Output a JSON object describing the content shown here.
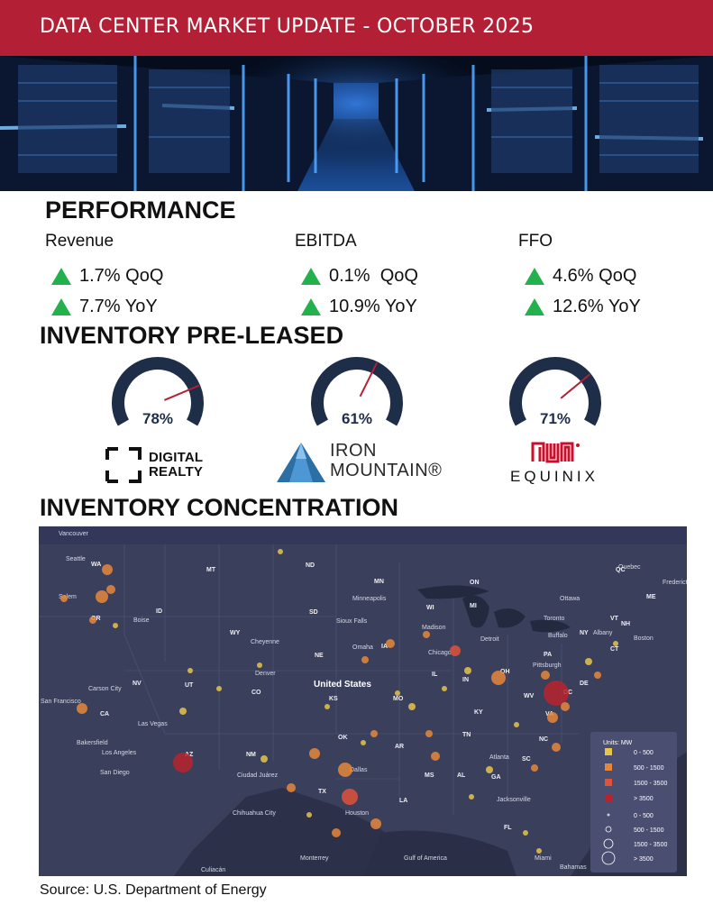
{
  "header": {
    "title": "DATA CENTER MARKET UPDATE - OCTOBER 2025",
    "bg_color": "#b32035"
  },
  "hero": {
    "description_icon": "server-hallway-image"
  },
  "performance": {
    "title": "PERFORMANCE",
    "metrics": [
      {
        "name": "Revenue",
        "qoq": "1.7% QoQ",
        "yoy": "7.7% YoY"
      },
      {
        "name": "EBITDA",
        "qoq": "0.1%  QoQ",
        "yoy": "10.9% YoY"
      },
      {
        "name": "FFO",
        "qoq": "4.6% QoQ",
        "yoy": "12.6% YoY"
      }
    ],
    "up_color": "#22b14c"
  },
  "inventory_preleased": {
    "title": "INVENTORY PRE-LEASED",
    "gauges": [
      {
        "company": "Digital Realty",
        "percent": 78,
        "label": "78%"
      },
      {
        "company": "Iron Mountain",
        "percent": 61,
        "label": "61%"
      },
      {
        "company": "Equinix",
        "percent": 71,
        "label": "71%"
      }
    ],
    "logos": {
      "digital_realty": {
        "line1": "DIGITAL",
        "line2": "REALTY"
      },
      "iron_mountain": {
        "line1": "IRON",
        "line2": "MOUNTAIN®"
      },
      "equinix": {
        "text": "EQUINIX"
      }
    },
    "gauge_color": "#1e2d48",
    "needle_color": "#b32035"
  },
  "concentration": {
    "title": "INVENTORY CONCENTRATION",
    "map_labels": {
      "places": [
        "Vancouver",
        "Seattle",
        "Salem",
        "Boise",
        "Carson City",
        "San Francisco",
        "Las Vegas",
        "Bakersfield",
        "Los Angeles",
        "San Diego",
        "Cheyenne",
        "Denver",
        "Sioux Falls",
        "Omaha",
        "Minneapolis",
        "Madison",
        "Chicago",
        "Detroit",
        "Toronto",
        "Ottawa",
        "Quebec",
        "Fredericton",
        "Albany",
        "Boston",
        "Buffalo",
        "Pittsburgh",
        "United States",
        "Dallas",
        "Houston",
        "Atlanta",
        "Jacksonville",
        "Miami",
        "Bahamas",
        "Monterrey",
        "Culiacán",
        "Chihuahua City",
        "Ciudad Juárez",
        "Gulf of America"
      ],
      "states": [
        "WA",
        "OR",
        "CA",
        "NV",
        "ID",
        "MT",
        "WY",
        "UT",
        "AZ",
        "NM",
        "CO",
        "ND",
        "SD",
        "NE",
        "KS",
        "OK",
        "TX",
        "MN",
        "IA",
        "MO",
        "AR",
        "LA",
        "WI",
        "IL",
        "MI",
        "IN",
        "KY",
        "TN",
        "MS",
        "AL",
        "GA",
        "FL",
        "SC",
        "NC",
        "VA",
        "WV",
        "OH",
        "PA",
        "NY",
        "VT",
        "NH",
        "ME",
        "CT",
        "DC",
        "DE",
        "ON",
        "QC"
      ]
    },
    "legend": {
      "title": "Units: MW",
      "squares": [
        "0 - 500",
        "500 - 1500",
        "1500 - 3500",
        "> 3500"
      ],
      "circles": [
        "0 - 500",
        "500 - 1500",
        "1500 - 3500",
        "> 3500"
      ],
      "colors": [
        "#e8c44a",
        "#e8873a",
        "#e0523a",
        "#b8232d"
      ]
    }
  },
  "footer": {
    "source": "Source: U.S. Department of Energy"
  }
}
